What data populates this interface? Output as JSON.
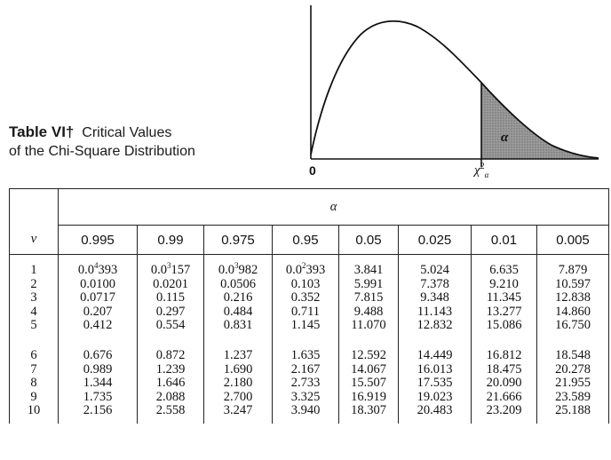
{
  "title": {
    "table_id": "Table VI†",
    "line1": "Critical Values",
    "line2": "of the Chi-Square Distribution"
  },
  "figure": {
    "origin": "0",
    "alpha": "α",
    "critical_symbol": "χ",
    "critical_sup": "2",
    "critical_sub": "α"
  },
  "table": {
    "alpha_header": "α",
    "nu_header": "ν",
    "columns": [
      "0.995",
      "0.99",
      "0.975",
      "0.95",
      "0.05",
      "0.025",
      "0.01",
      "0.005"
    ],
    "rows": [
      {
        "nu": "1",
        "values": [
          [
            "0.0",
            "4",
            "393"
          ],
          [
            "0.0",
            "3",
            "157"
          ],
          [
            "0.0",
            "3",
            "982"
          ],
          [
            "0.0",
            "2",
            "393"
          ],
          "3.841",
          "5.024",
          "6.635",
          "7.879"
        ]
      },
      {
        "nu": "2",
        "values": [
          "0.0100",
          "0.0201",
          "0.0506",
          "0.103",
          "5.991",
          "7.378",
          "9.210",
          "10.597"
        ]
      },
      {
        "nu": "3",
        "values": [
          "0.0717",
          "0.115",
          "0.216",
          "0.352",
          "7.815",
          "9.348",
          "11.345",
          "12.838"
        ]
      },
      {
        "nu": "4",
        "values": [
          "0.207",
          "0.297",
          "0.484",
          "0.711",
          "9.488",
          "11.143",
          "13.277",
          "14.860"
        ]
      },
      {
        "nu": "5",
        "values": [
          "0.412",
          "0.554",
          "0.831",
          "1.145",
          "11.070",
          "12.832",
          "15.086",
          "16.750"
        ]
      },
      {
        "nu": "6",
        "values": [
          "0.676",
          "0.872",
          "1.237",
          "1.635",
          "12.592",
          "14.449",
          "16.812",
          "18.548"
        ]
      },
      {
        "nu": "7",
        "values": [
          "0.989",
          "1.239",
          "1.690",
          "2.167",
          "14.067",
          "16.013",
          "18.475",
          "20.278"
        ]
      },
      {
        "nu": "8",
        "values": [
          "1.344",
          "1.646",
          "2.180",
          "2.733",
          "15.507",
          "17.535",
          "20.090",
          "21.955"
        ]
      },
      {
        "nu": "9",
        "values": [
          "1.735",
          "2.088",
          "2.700",
          "3.325",
          "16.919",
          "19.023",
          "21.666",
          "23.589"
        ]
      },
      {
        "nu": "10",
        "values": [
          "2.156",
          "2.558",
          "3.247",
          "3.940",
          "18.307",
          "20.483",
          "23.209",
          "25.188"
        ]
      }
    ]
  },
  "colors": {
    "shade": "#8a8a8a",
    "line": "#111111"
  }
}
